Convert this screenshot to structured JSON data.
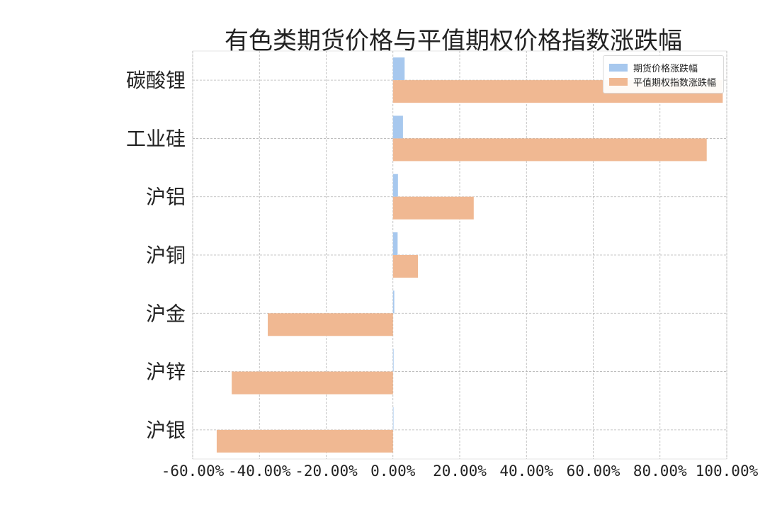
{
  "chart_data": {
    "type": "bar",
    "orientation": "horizontal",
    "title": "有色类期货价格与平值期权价格指数涨跌幅",
    "categories": [
      "碳酸锂",
      "工业硅",
      "沪铝",
      "沪铜",
      "沪金",
      "沪锌",
      "沪银"
    ],
    "series": [
      {
        "name": "期货价格涨跌幅",
        "color": "#a7c8ee",
        "values": [
          3.5,
          3.0,
          1.5,
          1.4,
          0.4,
          0.2,
          0.1
        ]
      },
      {
        "name": "平值期权指数涨跌幅",
        "color": "#f0b892",
        "values": [
          98.8,
          94.0,
          24.2,
          7.5,
          -37.5,
          -48.3,
          -52.8
        ]
      }
    ],
    "xlim": [
      -60,
      100
    ],
    "xticks": [
      -60,
      -40,
      -20,
      0,
      20,
      40,
      60,
      80,
      100
    ],
    "xtick_labels": [
      "-60.00%",
      "-40.00%",
      "-20.00%",
      "0.00%",
      "20.00%",
      "40.00%",
      "60.00%",
      "80.00%",
      "100.00%"
    ],
    "grid": true,
    "grid_style": "dashed",
    "legend_position": "top-right"
  }
}
